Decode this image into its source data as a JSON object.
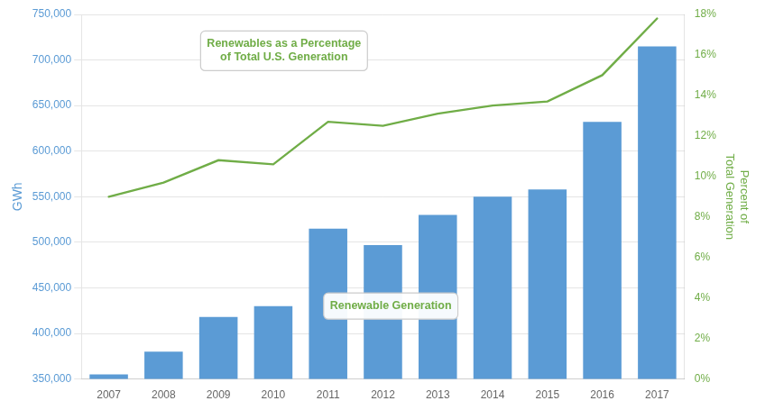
{
  "chart_data": {
    "type": "bar",
    "categories": [
      2007,
      2008,
      2009,
      2010,
      2011,
      2012,
      2013,
      2014,
      2015,
      2016,
      2017
    ],
    "series": [
      {
        "type": "bar",
        "color": "#5B9BD5",
        "values": [
          355000,
          380000,
          418000,
          430000,
          515000,
          497000,
          530000,
          550000,
          558000,
          632000,
          715000
        ]
      },
      {
        "type": "line",
        "color": "#70AD47",
        "axis": "y2",
        "values": [
          9.0,
          9.7,
          10.8,
          10.6,
          12.7,
          12.5,
          13.1,
          13.5,
          13.7,
          15.0,
          17.8
        ]
      }
    ],
    "ylabel": "GWh",
    "y2label": "Percent of\nTotal Generation",
    "ylim": [
      350000,
      750000
    ],
    "yticks": [
      {
        "value": 350000,
        "label": "350,000"
      },
      {
        "value": 400000,
        "label": "400,000"
      },
      {
        "value": 450000,
        "label": "450,000"
      },
      {
        "value": 500000,
        "label": "500,000"
      },
      {
        "value": 550000,
        "label": "550,000"
      },
      {
        "value": 600000,
        "label": "600,000"
      },
      {
        "value": 650000,
        "label": "650,000"
      },
      {
        "value": 700000,
        "label": "700,000"
      },
      {
        "value": 750000,
        "label": "750,000"
      }
    ],
    "y2lim": [
      0,
      18
    ],
    "y2ticks": [
      {
        "value": 0,
        "label": "0%"
      },
      {
        "value": 2,
        "label": "2%"
      },
      {
        "value": 4,
        "label": "4%"
      },
      {
        "value": 6,
        "label": "6%"
      },
      {
        "value": 8,
        "label": "8%"
      },
      {
        "value": 10,
        "label": "10%"
      },
      {
        "value": 12,
        "label": "12%"
      },
      {
        "value": 14,
        "label": "14%"
      },
      {
        "value": 16,
        "label": "16%"
      },
      {
        "value": 18,
        "label": "18%"
      }
    ],
    "annotations": [
      "Renewables as a Percentage\nof Total U.S. Generation",
      "Renewable Generation"
    ],
    "grid": true
  }
}
